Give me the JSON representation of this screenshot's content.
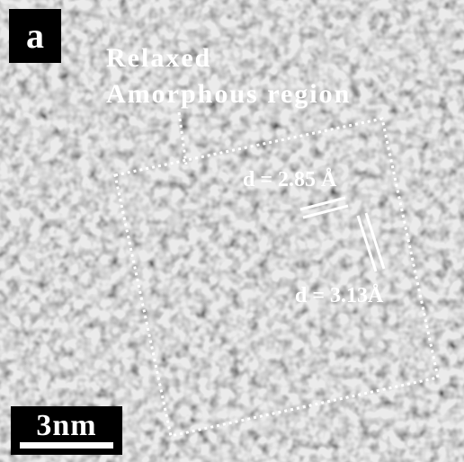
{
  "panel_label": "a",
  "annotations": {
    "region_label": [
      "Relaxed",
      "Amorphous region"
    ],
    "spacing_1": "d = 2.85 Å",
    "spacing_2": "d = 3.13Å"
  },
  "scale_bar": {
    "label": "3nm"
  }
}
